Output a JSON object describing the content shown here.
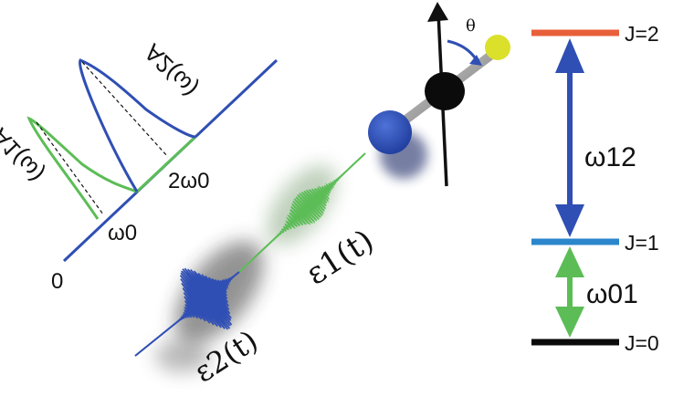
{
  "colors": {
    "blue": "#2f4fb4",
    "green": "#5cbd57",
    "orange": "#e8603a",
    "lightBlue": "#2b86cc",
    "black": "#0b0b0b",
    "yellow": "#dbe02a",
    "gray": "#8a8a8a"
  },
  "spectrum": {
    "origin_label": "0",
    "omega0_label": "ω0",
    "two_omega0_label": "2ω0",
    "a1_label": "A1(ω)",
    "a2_label": "A2(ω)"
  },
  "pulses": {
    "e1_label": "ε1(t)",
    "e2_label": "ε2(t)"
  },
  "molecule": {
    "angle_label": "θ"
  },
  "levels": {
    "j2_label": "J=2",
    "j1_label": "J=1",
    "j0_label": "J=0",
    "omega12_label": "ω12",
    "omega01_label": "ω01"
  }
}
